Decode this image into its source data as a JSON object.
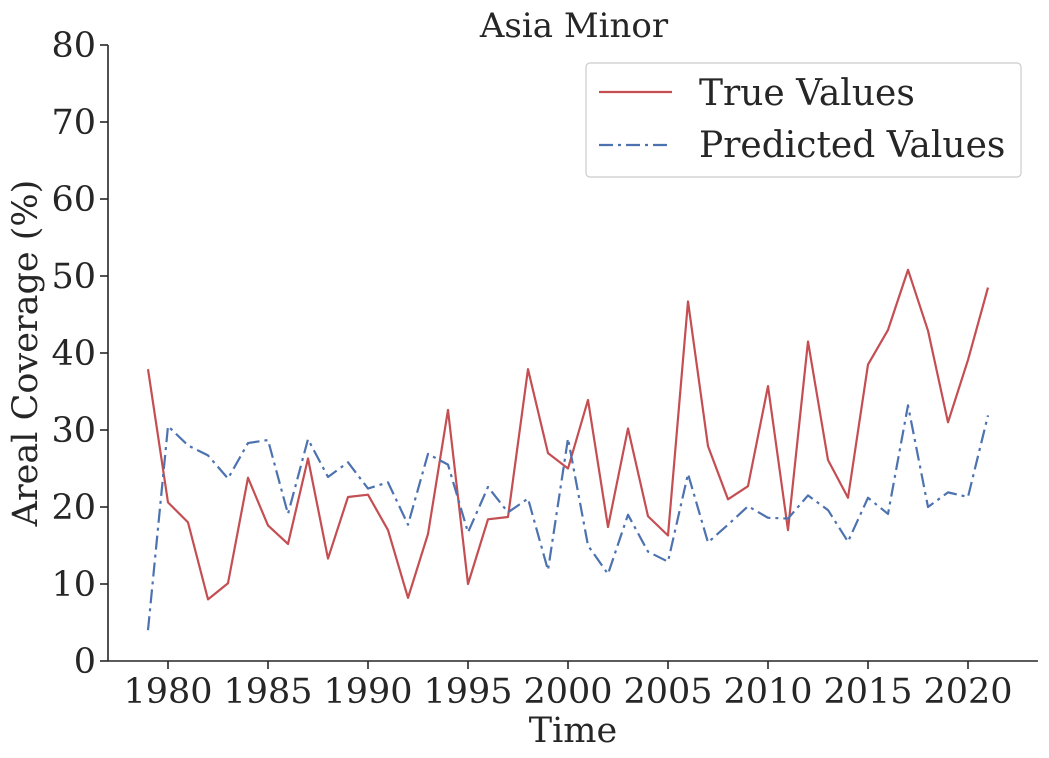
{
  "chart_data": {
    "type": "line",
    "title": "Asia Minor",
    "xlabel": "Time",
    "ylabel": "Areal Coverage (%)",
    "xlim": [
      1977,
      2023.5
    ],
    "ylim": [
      0,
      80
    ],
    "xticks": [
      1980,
      1985,
      1990,
      1995,
      2000,
      2005,
      2010,
      2015,
      2020
    ],
    "yticks": [
      0,
      10,
      20,
      30,
      40,
      50,
      60,
      70,
      80
    ],
    "grid": false,
    "legend_position": "top-right",
    "x": [
      1979,
      1980,
      1981,
      1982,
      1983,
      1984,
      1985,
      1986,
      1987,
      1988,
      1989,
      1990,
      1991,
      1992,
      1993,
      1994,
      1995,
      1996,
      1997,
      1998,
      1999,
      2000,
      2001,
      2002,
      2003,
      2004,
      2005,
      2006,
      2007,
      2008,
      2009,
      2010,
      2011,
      2012,
      2013,
      2014,
      2015,
      2016,
      2017,
      2018,
      2019,
      2020,
      2021
    ],
    "series": [
      {
        "name": "True Values",
        "color": "#c44e52",
        "dash": "solid",
        "values": [
          37.9,
          20.6,
          18.0,
          8.0,
          10.1,
          23.8,
          17.6,
          15.2,
          26.3,
          13.3,
          21.3,
          21.6,
          17.0,
          8.2,
          16.5,
          32.6,
          10.0,
          18.4,
          18.7,
          37.9,
          27.0,
          25.0,
          33.9,
          17.4,
          30.2,
          18.8,
          16.3,
          46.7,
          27.9,
          21.0,
          22.7,
          35.7,
          17.0,
          41.5,
          26.1,
          21.2,
          38.5,
          43.0,
          50.8,
          42.9,
          31.0,
          39.1,
          48.5
        ]
      },
      {
        "name": "Predicted Values",
        "color": "#4c72b0",
        "dash": "dashdot",
        "values": [
          4.0,
          30.5,
          28.0,
          26.7,
          23.7,
          28.3,
          28.7,
          19.1,
          28.8,
          23.9,
          25.8,
          22.4,
          23.2,
          17.7,
          26.9,
          25.5,
          16.7,
          22.6,
          19.3,
          21.1,
          11.8,
          28.9,
          15.0,
          11.3,
          19.0,
          14.2,
          12.9,
          24.3,
          15.4,
          17.7,
          20.1,
          18.6,
          18.5,
          21.5,
          19.6,
          15.5,
          21.2,
          19.1,
          33.2,
          20.0,
          21.9,
          21.3,
          31.9
        ]
      }
    ]
  }
}
